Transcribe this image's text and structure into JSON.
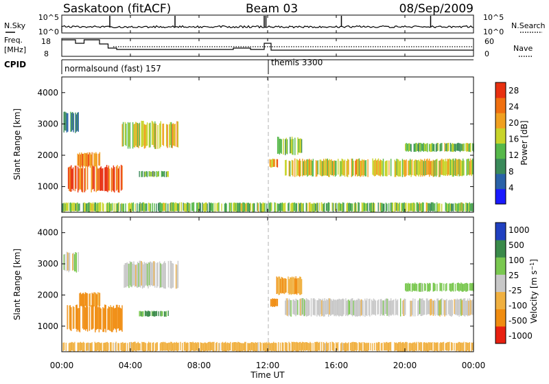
{
  "header": {
    "radar": "Saskatoon (fitACF)",
    "beam": "Beam 03",
    "date": "08/Sep/2009"
  },
  "noise_panel": {
    "left_label": "N.Sky",
    "right_label": "N.Search",
    "left_ticks": [
      "10^5",
      "10^0"
    ],
    "right_ticks": [
      "10^5",
      "10^0"
    ]
  },
  "freq_panel": {
    "left_label_1": "Freq.",
    "left_label_2": "[MHz]",
    "right_label": "Nave",
    "left_ticks": [
      "18",
      "8"
    ],
    "right_ticks": [
      "60",
      "0"
    ]
  },
  "cpid": {
    "label": "CPID",
    "segments": [
      "normalsound (fast) 157",
      "themis 3300"
    ]
  },
  "x_axis": {
    "label": "Time UT",
    "ticks": [
      "00:00",
      "04:00",
      "08:00",
      "12:00",
      "16:00",
      "20:00",
      "00:00"
    ]
  },
  "colors": {
    "power": [
      "#1a1aff",
      "#2a62a8",
      "#3a8a5a",
      "#56b84a",
      "#c8d42a",
      "#f0a020",
      "#f07010",
      "#e83010"
    ],
    "velocity_neg": "#f08c10",
    "velocity_zero": "#c8c8c8",
    "velocity_pos": "#3cb44a",
    "dashed_line": "#b0b0b0"
  },
  "chart_data": [
    {
      "type": "heatmap",
      "title": "",
      "xlabel": "",
      "ylabel": "Slant Range [km]",
      "yticks": [
        "1000",
        "2000",
        "3000",
        "4000"
      ],
      "xlim": [
        "00:00",
        "24:00"
      ],
      "ylim": [
        180,
        4500
      ],
      "colorbar": {
        "label": "Power [dB]",
        "ticks": [
          "4",
          "8",
          "12",
          "16",
          "20",
          "24",
          "28"
        ],
        "range": [
          0,
          30
        ]
      },
      "regions": [
        {
          "t0": 0.1,
          "t1": 1.0,
          "r0": 2700,
          "r1": 3400,
          "value": 10
        },
        {
          "t0": 0.3,
          "t1": 3.5,
          "r0": 800,
          "r1": 1700,
          "value": 26
        },
        {
          "t0": 0.9,
          "t1": 2.2,
          "r0": 1600,
          "r1": 2100,
          "value": 24
        },
        {
          "t0": 3.5,
          "t1": 6.8,
          "r0": 2200,
          "r1": 3100,
          "value": 18
        },
        {
          "t0": 4.5,
          "t1": 6.2,
          "r0": 1300,
          "r1": 1500,
          "value": 12
        },
        {
          "t0": 0.0,
          "t1": 24.0,
          "r0": 180,
          "r1": 500,
          "value": 14
        },
        {
          "t0": 12.1,
          "t1": 12.6,
          "r0": 1600,
          "r1": 1900,
          "value": 22
        },
        {
          "t0": 13.0,
          "t1": 24.0,
          "r0": 1300,
          "r1": 1900,
          "value": 18
        },
        {
          "t0": 12.5,
          "t1": 14.0,
          "r0": 2000,
          "r1": 2600,
          "value": 14
        },
        {
          "t0": 20.0,
          "t1": 24.0,
          "r0": 2100,
          "r1": 2400,
          "value": 14
        }
      ]
    },
    {
      "type": "heatmap",
      "title": "",
      "xlabel": "Time UT",
      "ylabel": "Slant Range [km]",
      "yticks": [
        "1000",
        "2000",
        "3000",
        "4000"
      ],
      "xlim": [
        "00:00",
        "24:00"
      ],
      "ylim": [
        180,
        4500
      ],
      "colorbar": {
        "label": "Velocity [m s^-1]",
        "ticks": [
          "-1000",
          "-500",
          "-100",
          "-25",
          "25",
          "100",
          "500",
          "1000"
        ],
        "range": [
          -1000,
          1000
        ]
      },
      "regions": [
        {
          "t0": 0.1,
          "t1": 1.0,
          "r0": 2700,
          "r1": 3400,
          "value": 0
        },
        {
          "t0": 0.3,
          "t1": 3.5,
          "r0": 800,
          "r1": 1700,
          "value": -200
        },
        {
          "t0": 0.9,
          "t1": 2.2,
          "r0": 1600,
          "r1": 2100,
          "value": -150
        },
        {
          "t0": 3.5,
          "t1": 6.8,
          "r0": 2200,
          "r1": 3100,
          "value": 0
        },
        {
          "t0": 4.5,
          "t1": 6.2,
          "r0": 1300,
          "r1": 1500,
          "value": 150
        },
        {
          "t0": 0.0,
          "t1": 24.0,
          "r0": 180,
          "r1": 500,
          "value": -60
        },
        {
          "t0": 12.1,
          "t1": 12.6,
          "r0": 1600,
          "r1": 1900,
          "value": -300
        },
        {
          "t0": 13.0,
          "t1": 24.0,
          "r0": 1300,
          "r1": 1900,
          "value": 0
        },
        {
          "t0": 12.5,
          "t1": 14.0,
          "r0": 2000,
          "r1": 2600,
          "value": -80
        },
        {
          "t0": 20.0,
          "t1": 24.0,
          "r0": 2100,
          "r1": 2400,
          "value": 60
        }
      ]
    }
  ]
}
